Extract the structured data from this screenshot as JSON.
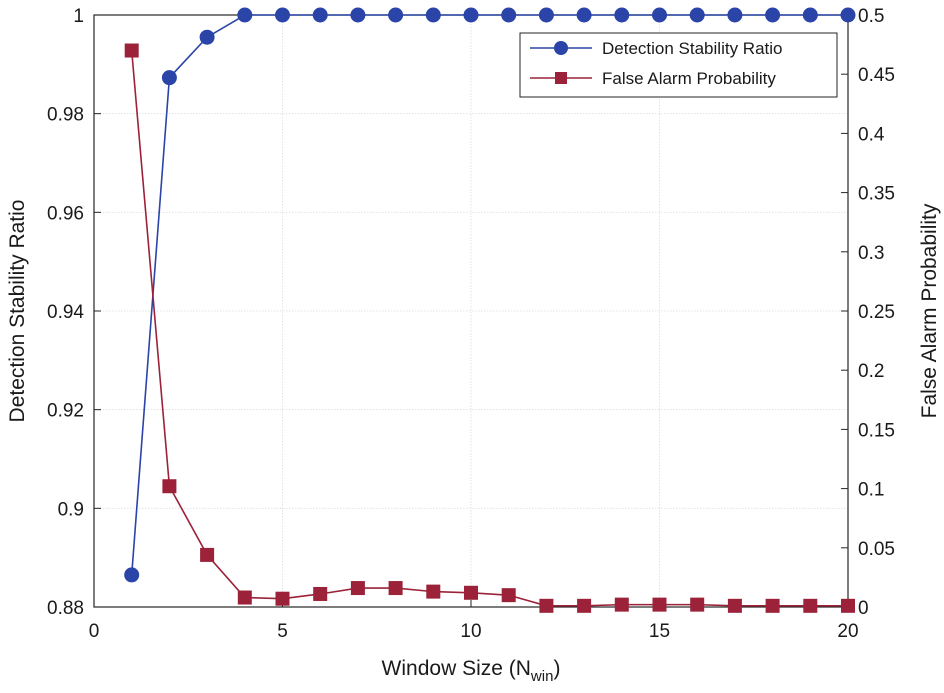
{
  "chart_data": {
    "type": "line",
    "title": "",
    "xlabel": "Window Size (N",
    "xlabel_sub": "win",
    "xlabel_close": ")",
    "ylabel_left": "Detection Stability Ratio",
    "ylabel_right": "False Alarm Probability",
    "xlim": [
      0,
      20
    ],
    "ylim_left": [
      0.88,
      1.0
    ],
    "ylim_right": [
      0,
      0.5
    ],
    "xticks": [
      0,
      5,
      10,
      15,
      20
    ],
    "xtick_labels": [
      "0",
      "5",
      "10",
      "15",
      "20"
    ],
    "yticks_left": [
      0.88,
      0.9,
      0.92,
      0.94,
      0.96,
      0.98,
      1.0
    ],
    "ytick_labels_left": [
      "0.88",
      "0.9",
      "0.92",
      "0.94",
      "0.96",
      "0.98",
      "1"
    ],
    "yticks_right": [
      0,
      0.05,
      0.1,
      0.15,
      0.2,
      0.25,
      0.3,
      0.35,
      0.4,
      0.45,
      0.5
    ],
    "ytick_labels_right": [
      "0",
      "0.05",
      "0.1",
      "0.15",
      "0.2",
      "0.25",
      "0.3",
      "0.35",
      "0.4",
      "0.45",
      "0.5"
    ],
    "grid": true,
    "legend_position": "top-right",
    "x": [
      1,
      2,
      3,
      4,
      5,
      6,
      7,
      8,
      9,
      10,
      11,
      12,
      13,
      14,
      15,
      16,
      17,
      18,
      19,
      20
    ],
    "series": [
      {
        "name": "Detection Stability Ratio",
        "axis": "left",
        "marker": "circle",
        "color": "#2a44a8",
        "values": [
          0.8865,
          0.9873,
          0.9955,
          1.0,
          1.0,
          1.0,
          1.0,
          1.0,
          1.0,
          1.0,
          1.0,
          1.0,
          1.0,
          1.0,
          1.0,
          1.0,
          1.0,
          1.0,
          1.0,
          1.0
        ]
      },
      {
        "name": "False Alarm Probability",
        "axis": "right",
        "marker": "square",
        "color": "#9b2238",
        "values": [
          0.47,
          0.102,
          0.044,
          0.008,
          0.007,
          0.011,
          0.016,
          0.016,
          0.013,
          0.012,
          0.01,
          0.001,
          0.001,
          0.002,
          0.002,
          0.002,
          0.001,
          0.001,
          0.001,
          0.001
        ]
      }
    ]
  }
}
